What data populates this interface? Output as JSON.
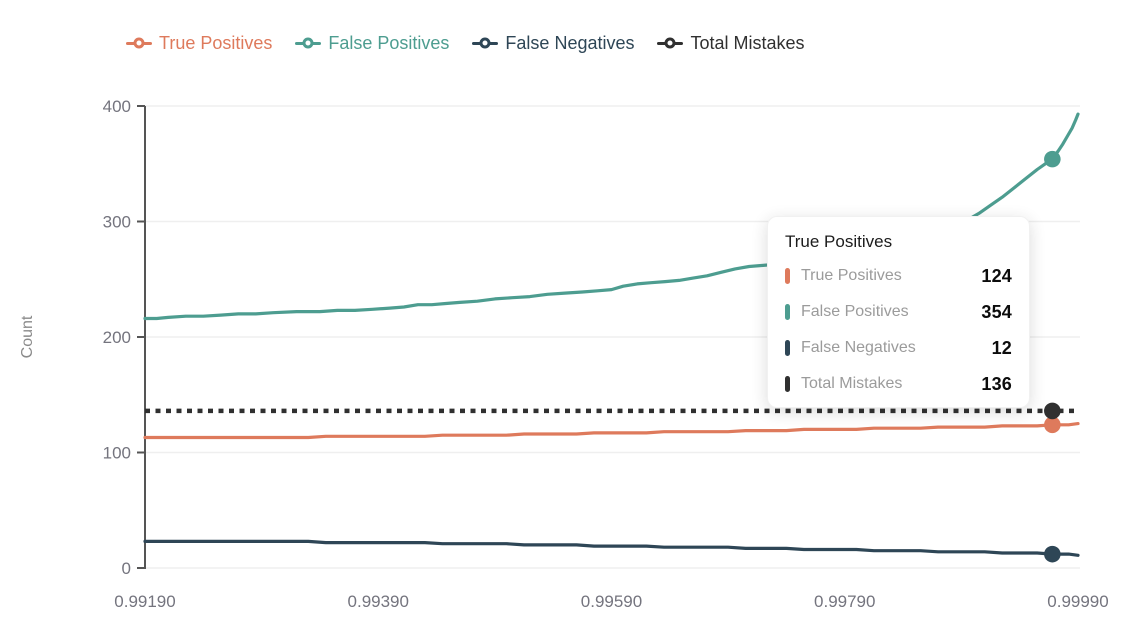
{
  "colors": {
    "true_positives": "#DE7A5C",
    "false_positives": "#4D9D90",
    "false_negatives": "#2E4656",
    "total_mistakes": "#303030",
    "gridline": "#efefef",
    "axis": "#555555",
    "tick_text": "#74747e",
    "axis_title_text": "#8a8a8a"
  },
  "legend": {
    "items": [
      {
        "label": "True Positives",
        "color": "#DE7A5C"
      },
      {
        "label": "False Positives",
        "color": "#4D9D90"
      },
      {
        "label": "False Negatives",
        "color": "#2E4656"
      },
      {
        "label": "Total Mistakes",
        "color": "#303030"
      }
    ]
  },
  "tooltip": {
    "title": "True Positives",
    "rows": [
      {
        "label": "True Positives",
        "value": "124",
        "color": "#DE7A5C"
      },
      {
        "label": "False Positives",
        "value": "354",
        "color": "#4D9D90"
      },
      {
        "label": "False Negatives",
        "value": "12",
        "color": "#2E4656"
      },
      {
        "label": "Total Mistakes",
        "value": "136",
        "color": "#303030"
      }
    ]
  },
  "chart_data": {
    "type": "line",
    "title": "",
    "xlabel": "",
    "ylabel": "Count",
    "xlim": [
      0.9919,
      0.9999
    ],
    "ylim": [
      0,
      400
    ],
    "yticks": [
      0,
      100,
      200,
      300,
      400
    ],
    "xticks": {
      "values": [
        0.9919,
        0.9939,
        0.9959,
        0.9979,
        0.9999
      ],
      "labels": [
        "0.99190",
        "0.99390",
        "0.99590",
        "0.99790",
        "0.99990"
      ]
    },
    "grid": "horizontal",
    "legend_position": "top",
    "hover_x": 0.99968,
    "series": [
      {
        "name": "True Positives",
        "color": "#DE7A5C",
        "style": "solid",
        "hover_value": 124,
        "points": [
          [
            0.9919,
            113
          ],
          [
            0.9933,
            113
          ],
          [
            0.99345,
            114
          ],
          [
            0.9943,
            114
          ],
          [
            0.99445,
            115
          ],
          [
            0.995,
            115
          ],
          [
            0.99515,
            116
          ],
          [
            0.9956,
            116
          ],
          [
            0.99575,
            117
          ],
          [
            0.9962,
            117
          ],
          [
            0.99635,
            118
          ],
          [
            0.9969,
            118
          ],
          [
            0.99705,
            119
          ],
          [
            0.9974,
            119
          ],
          [
            0.99755,
            120
          ],
          [
            0.998,
            120
          ],
          [
            0.99815,
            121
          ],
          [
            0.99855,
            121
          ],
          [
            0.9987,
            122
          ],
          [
            0.9991,
            122
          ],
          [
            0.99925,
            123
          ],
          [
            0.99955,
            123
          ],
          [
            0.99968,
            124
          ],
          [
            0.99982,
            124
          ],
          [
            0.9999,
            125
          ]
        ]
      },
      {
        "name": "False Positives",
        "color": "#4D9D90",
        "style": "solid",
        "hover_value": 354,
        "points": [
          [
            0.9919,
            216
          ],
          [
            0.992,
            216
          ],
          [
            0.9921,
            217
          ],
          [
            0.99225,
            218
          ],
          [
            0.9924,
            218
          ],
          [
            0.99255,
            219
          ],
          [
            0.9927,
            220
          ],
          [
            0.99285,
            220
          ],
          [
            0.993,
            221
          ],
          [
            0.9932,
            222
          ],
          [
            0.9934,
            222
          ],
          [
            0.99355,
            223
          ],
          [
            0.9937,
            223
          ],
          [
            0.99385,
            224
          ],
          [
            0.994,
            225
          ],
          [
            0.99412,
            226
          ],
          [
            0.99424,
            228
          ],
          [
            0.99436,
            228
          ],
          [
            0.99448,
            229
          ],
          [
            0.9946,
            230
          ],
          [
            0.99475,
            231
          ],
          [
            0.9949,
            233
          ],
          [
            0.99505,
            234
          ],
          [
            0.9952,
            235
          ],
          [
            0.99535,
            237
          ],
          [
            0.9955,
            238
          ],
          [
            0.99565,
            239
          ],
          [
            0.99578,
            240
          ],
          [
            0.9959,
            241
          ],
          [
            0.996,
            244
          ],
          [
            0.99612,
            246
          ],
          [
            0.99624,
            247
          ],
          [
            0.99636,
            248
          ],
          [
            0.99648,
            249
          ],
          [
            0.9966,
            251
          ],
          [
            0.99672,
            253
          ],
          [
            0.99684,
            256
          ],
          [
            0.99696,
            259
          ],
          [
            0.99708,
            261
          ],
          [
            0.9972,
            262
          ],
          [
            0.99732,
            263
          ],
          [
            0.99744,
            264
          ],
          [
            0.9976,
            264
          ],
          [
            0.99775,
            265
          ],
          [
            0.9979,
            266
          ],
          [
            0.99805,
            268
          ],
          [
            0.9982,
            271
          ],
          [
            0.99835,
            275
          ],
          [
            0.9985,
            280
          ],
          [
            0.99865,
            286
          ],
          [
            0.9988,
            293
          ],
          [
            0.99893,
            300
          ],
          [
            0.99905,
            307
          ],
          [
            0.99915,
            314
          ],
          [
            0.99925,
            321
          ],
          [
            0.99935,
            329
          ],
          [
            0.99945,
            337
          ],
          [
            0.99955,
            345
          ],
          [
            0.99962,
            350
          ],
          [
            0.99968,
            354
          ],
          [
            0.99973,
            361
          ],
          [
            0.99977,
            367
          ],
          [
            0.99981,
            374
          ],
          [
            0.99985,
            381
          ],
          [
            0.99988,
            388
          ],
          [
            0.9999,
            393
          ]
        ]
      },
      {
        "name": "False Negatives",
        "color": "#2E4656",
        "style": "solid",
        "hover_value": 12,
        "points": [
          [
            0.9919,
            23
          ],
          [
            0.9933,
            23
          ],
          [
            0.99345,
            22
          ],
          [
            0.9943,
            22
          ],
          [
            0.99445,
            21
          ],
          [
            0.995,
            21
          ],
          [
            0.99515,
            20
          ],
          [
            0.9956,
            20
          ],
          [
            0.99575,
            19
          ],
          [
            0.9962,
            19
          ],
          [
            0.99635,
            18
          ],
          [
            0.9969,
            18
          ],
          [
            0.99705,
            17
          ],
          [
            0.9974,
            17
          ],
          [
            0.99755,
            16
          ],
          [
            0.998,
            16
          ],
          [
            0.99815,
            15
          ],
          [
            0.99855,
            15
          ],
          [
            0.9987,
            14
          ],
          [
            0.9991,
            14
          ],
          [
            0.99925,
            13
          ],
          [
            0.99955,
            13
          ],
          [
            0.99968,
            12
          ],
          [
            0.99982,
            12
          ],
          [
            0.9999,
            11
          ]
        ]
      },
      {
        "name": "Total Mistakes",
        "color": "#303030",
        "style": "dotted",
        "hover_value": 136,
        "points": [
          [
            0.9919,
            136
          ],
          [
            0.9999,
            136
          ]
        ]
      }
    ]
  }
}
